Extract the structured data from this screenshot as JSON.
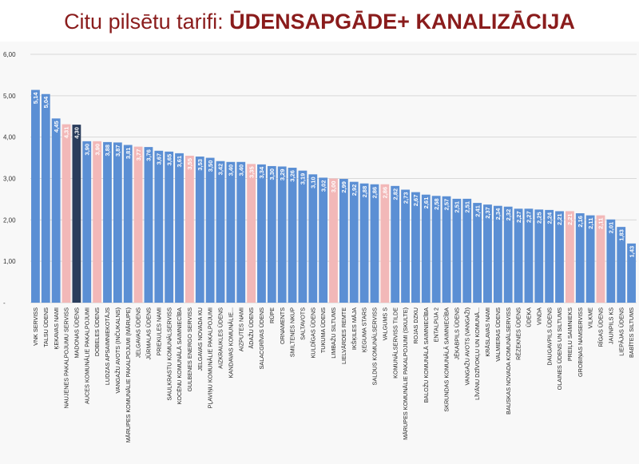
{
  "title": {
    "prefix": "Citu pilsētu tarifi: ",
    "emphasis": "ŪDENSAPGĀDE+ KANALIZĀCIJA"
  },
  "colors": {
    "default": "#5b8fd4",
    "highlight": "#f2b8b8",
    "dark": "#2a3d5c",
    "title": "#8a1c1c"
  },
  "chart_data": {
    "type": "bar",
    "title": "ŪDENSAPGĀDE+ KANALIZĀCIJA",
    "ylim": [
      0,
      6
    ],
    "yticks": [
      "-",
      "1,00",
      "2,00",
      "3,00",
      "4,00",
      "5,00",
      "6,00"
    ],
    "grid": true,
    "categories": [
      "VNK SERVISS",
      "TALSU ŪDENS",
      "ĶEKAVAS NAMI",
      "NAUJENES PAKALPOJUMU SERVISS",
      "MADONAS ŪDENS",
      "AUCES KOMUNĀLIE PAKALPOJUMI",
      "DOBELES ŪDENS",
      "LUDZAS APSAIMNIEKOTĀJS",
      "VANGAŽU AVOTS (INČUKALNS)",
      "MĀRUPES KOMUNĀLIE PAKALPOJUMI (MĀRUPE)",
      "JELGAVAS ŪDENS",
      "JŪRMALAS ŪDENS",
      "PRIEKULES NAMI",
      "SAULKRASTU KOMUNĀLSERVISS",
      "KOCĒNU KOMUNĀLĀ SAIMNIECĪBA",
      "GULBENES ENERGO SERVISS",
      "JELGAVAS NOVADA KU",
      "PĻAVIŅU KOMUNĀLIE PAKALPOJUMI",
      "AIZKRAUKLES ŪDENS",
      "KANDAVAS KOMUNĀLIE...",
      "AIZPUTES NAMI",
      "ĀDAŽU ŪDENS",
      "SALACGRĪVAS ŪDENS",
      "RŪPE",
      "ORNAMENTS",
      "SMILTENES NKUP",
      "SALTAVOTS",
      "KULDĪGAS ŪDENS",
      "TUKUMA ŪDENS",
      "LIMBAŽU SILTUMS",
      "LIELVĀRDES REMTE",
      "IKŠĶILES MĀJA",
      "ĶEGUMA STARS",
      "SALDUS KOMUNĀLSERVISS",
      "VALGUMS S",
      "KOMUNĀLSERVISS TILDE",
      "MĀRUPES KOMUNĀLIE PAKALPOJUMI (SKULTE)",
      "ROJAS DZKU",
      "BALOŽU KOMUNĀLĀ SAIMNIECĪBA",
      "ENTALPIJA 2",
      "SKRUNDAS KOMUNĀLĀ SAIMNIECĪBA",
      "JĒKABPILS ŪDENS",
      "VANGAŽU AVOTS (VANGAŽI)",
      "LĪVĀNU DZĪVOKĻU UN KOMUNĀ...",
      "KRĀSLAVAS NAMI",
      "VALMIERAS ŪDENS",
      "BAUSKAS NOVADA KOMUNĀLSERVISS",
      "RĒZEKNES ŪDENS",
      "ŪDEKA",
      "VINDA",
      "DAUGAVPILS ŪDENS",
      "OLAINES ŪDENS UN SILTUMS",
      "PREIĻU SAIMNIEKS",
      "GROBIŅAS NAMSERVISS",
      "VILKME",
      "RĪGAS ŪDENS",
      "JAUNPILS KS",
      "LIEPĀJAS ŪDENS",
      "BABĪTES SILTUMS"
    ],
    "values": [
      5.14,
      5.04,
      4.45,
      4.31,
      4.3,
      3.9,
      3.9,
      3.88,
      3.87,
      3.81,
      3.77,
      3.76,
      3.67,
      3.65,
      3.61,
      3.55,
      3.53,
      3.5,
      3.42,
      3.4,
      3.4,
      3.35,
      3.34,
      3.3,
      3.29,
      3.26,
      3.19,
      3.1,
      3.02,
      3.0,
      2.99,
      2.92,
      2.88,
      2.86,
      2.86,
      2.82,
      2.73,
      2.67,
      2.61,
      2.58,
      2.57,
      2.51,
      2.51,
      2.41,
      2.37,
      2.34,
      2.32,
      2.27,
      2.27,
      2.25,
      2.24,
      2.21,
      2.21,
      2.16,
      2.11,
      2.11,
      2.01,
      1.83,
      1.43
    ],
    "value_labels": [
      "5,14",
      "5,04",
      "4,45",
      "4,31",
      "4,30",
      "3,90",
      "3,90",
      "3,88",
      "3,87",
      "3,81",
      "3,77",
      "3,76",
      "3,67",
      "3,65",
      "3,61",
      "3,55",
      "3,53",
      "3,50",
      "3,42",
      "3,40",
      "3,40",
      "3,35",
      "3,34",
      "3,30",
      "3,29",
      "3,26",
      "3,19",
      "3,10",
      "3,02",
      "3,00",
      "2,99",
      "2,92",
      "2,88",
      "2,86",
      "2,86",
      "2,82",
      "2,73",
      "2,67",
      "2,61",
      "2,58",
      "2,57",
      "2,51",
      "2,51",
      "2,41",
      "2,37",
      "2,34",
      "2,32",
      "2,27",
      "2,27",
      "2,25",
      "2,24",
      "2,21",
      "2,21",
      "2,16",
      "2,11",
      "2,11",
      "2,01",
      "1,83",
      "1,43"
    ],
    "bar_colors": [
      "default",
      "default",
      "default",
      "highlight",
      "dark",
      "default",
      "highlight",
      "default",
      "default",
      "default",
      "highlight",
      "default",
      "default",
      "default",
      "default",
      "highlight",
      "default",
      "default",
      "default",
      "default",
      "default",
      "highlight",
      "default",
      "default",
      "default",
      "default",
      "default",
      "default",
      "default",
      "highlight",
      "default",
      "default",
      "default",
      "default",
      "highlight",
      "default",
      "default",
      "default",
      "default",
      "default",
      "default",
      "default",
      "default",
      "default",
      "default",
      "default",
      "default",
      "default",
      "default",
      "default",
      "default",
      "default",
      "highlight",
      "default",
      "default",
      "highlight",
      "default",
      "default",
      "default"
    ]
  }
}
